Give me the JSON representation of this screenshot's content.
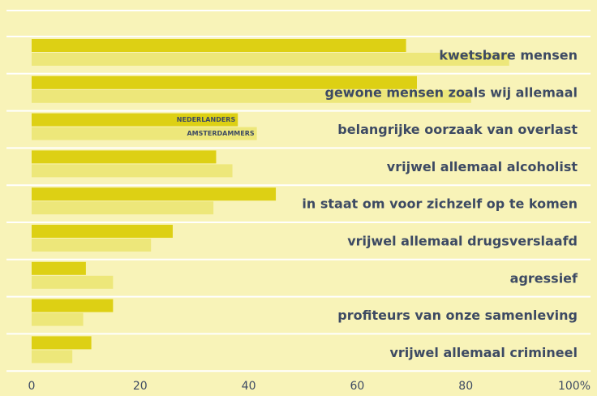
{
  "chart_data": {
    "type": "bar",
    "orientation": "horizontal",
    "categories": [
      "kwetsbare mensen",
      "gewone mensen zoals wij allemaal",
      "belangrijke oorzaak van overlast",
      "vrijwel allemaal alcoholist",
      "in staat om voor zichzelf op te komen",
      "vrijwel allemaal drugsverslaafd",
      "agressief",
      "profiteurs van onze samenleving",
      "vrijwel allemaal crimineel"
    ],
    "series": [
      {
        "name": "NEDERLANDERS",
        "color": "#ddd014",
        "values": [
          69,
          71,
          38,
          34,
          45,
          26,
          10,
          15,
          11
        ]
      },
      {
        "name": "AMSTERDAMMERS",
        "color": "#ede77a",
        "values": [
          88,
          81,
          41.5,
          37,
          33.5,
          22,
          15,
          9.5,
          7.5
        ]
      }
    ],
    "xlim": [
      0,
      100
    ],
    "xticks": [
      0,
      20,
      40,
      60,
      80,
      {
        "value": 100,
        "label": "100%"
      }
    ]
  }
}
